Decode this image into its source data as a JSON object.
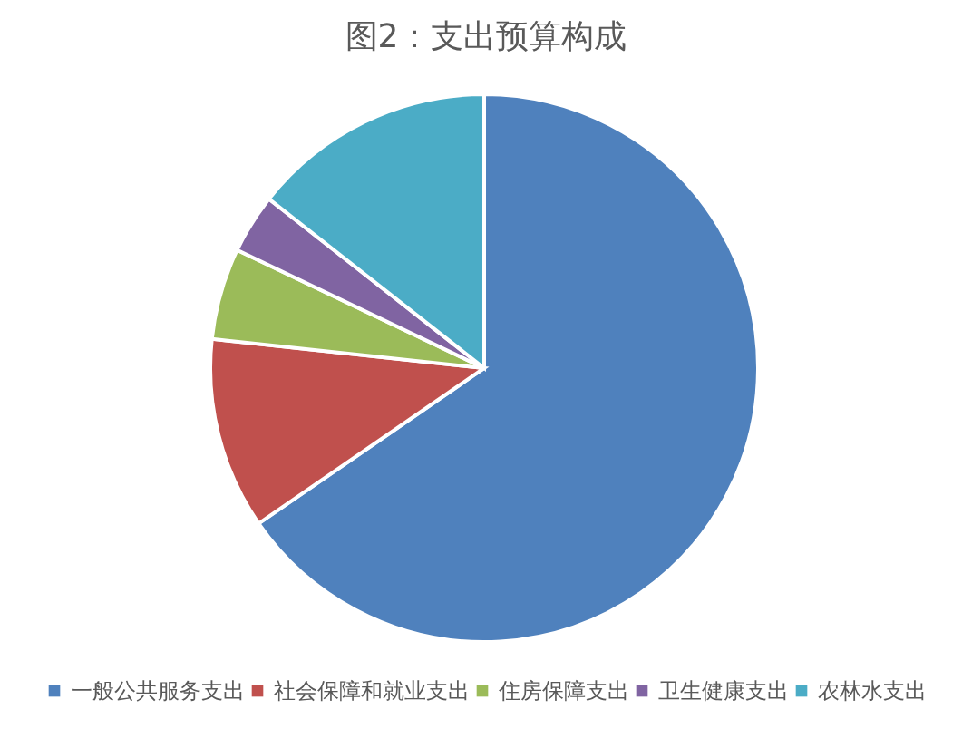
{
  "chart_data": {
    "type": "pie",
    "title": "图2：支出预算构成",
    "categories": [
      "一般公共服务支出",
      "社会保障和就业支出",
      "住房保障支出",
      "卫生健康支出",
      "农林水支出"
    ],
    "values": [
      65.4,
      11.3,
      5.4,
      3.5,
      14.4
    ],
    "colors": [
      "#4f81bd",
      "#c0504d",
      "#9bbb59",
      "#8064a2",
      "#4bacc6"
    ],
    "legend": "bottom"
  }
}
